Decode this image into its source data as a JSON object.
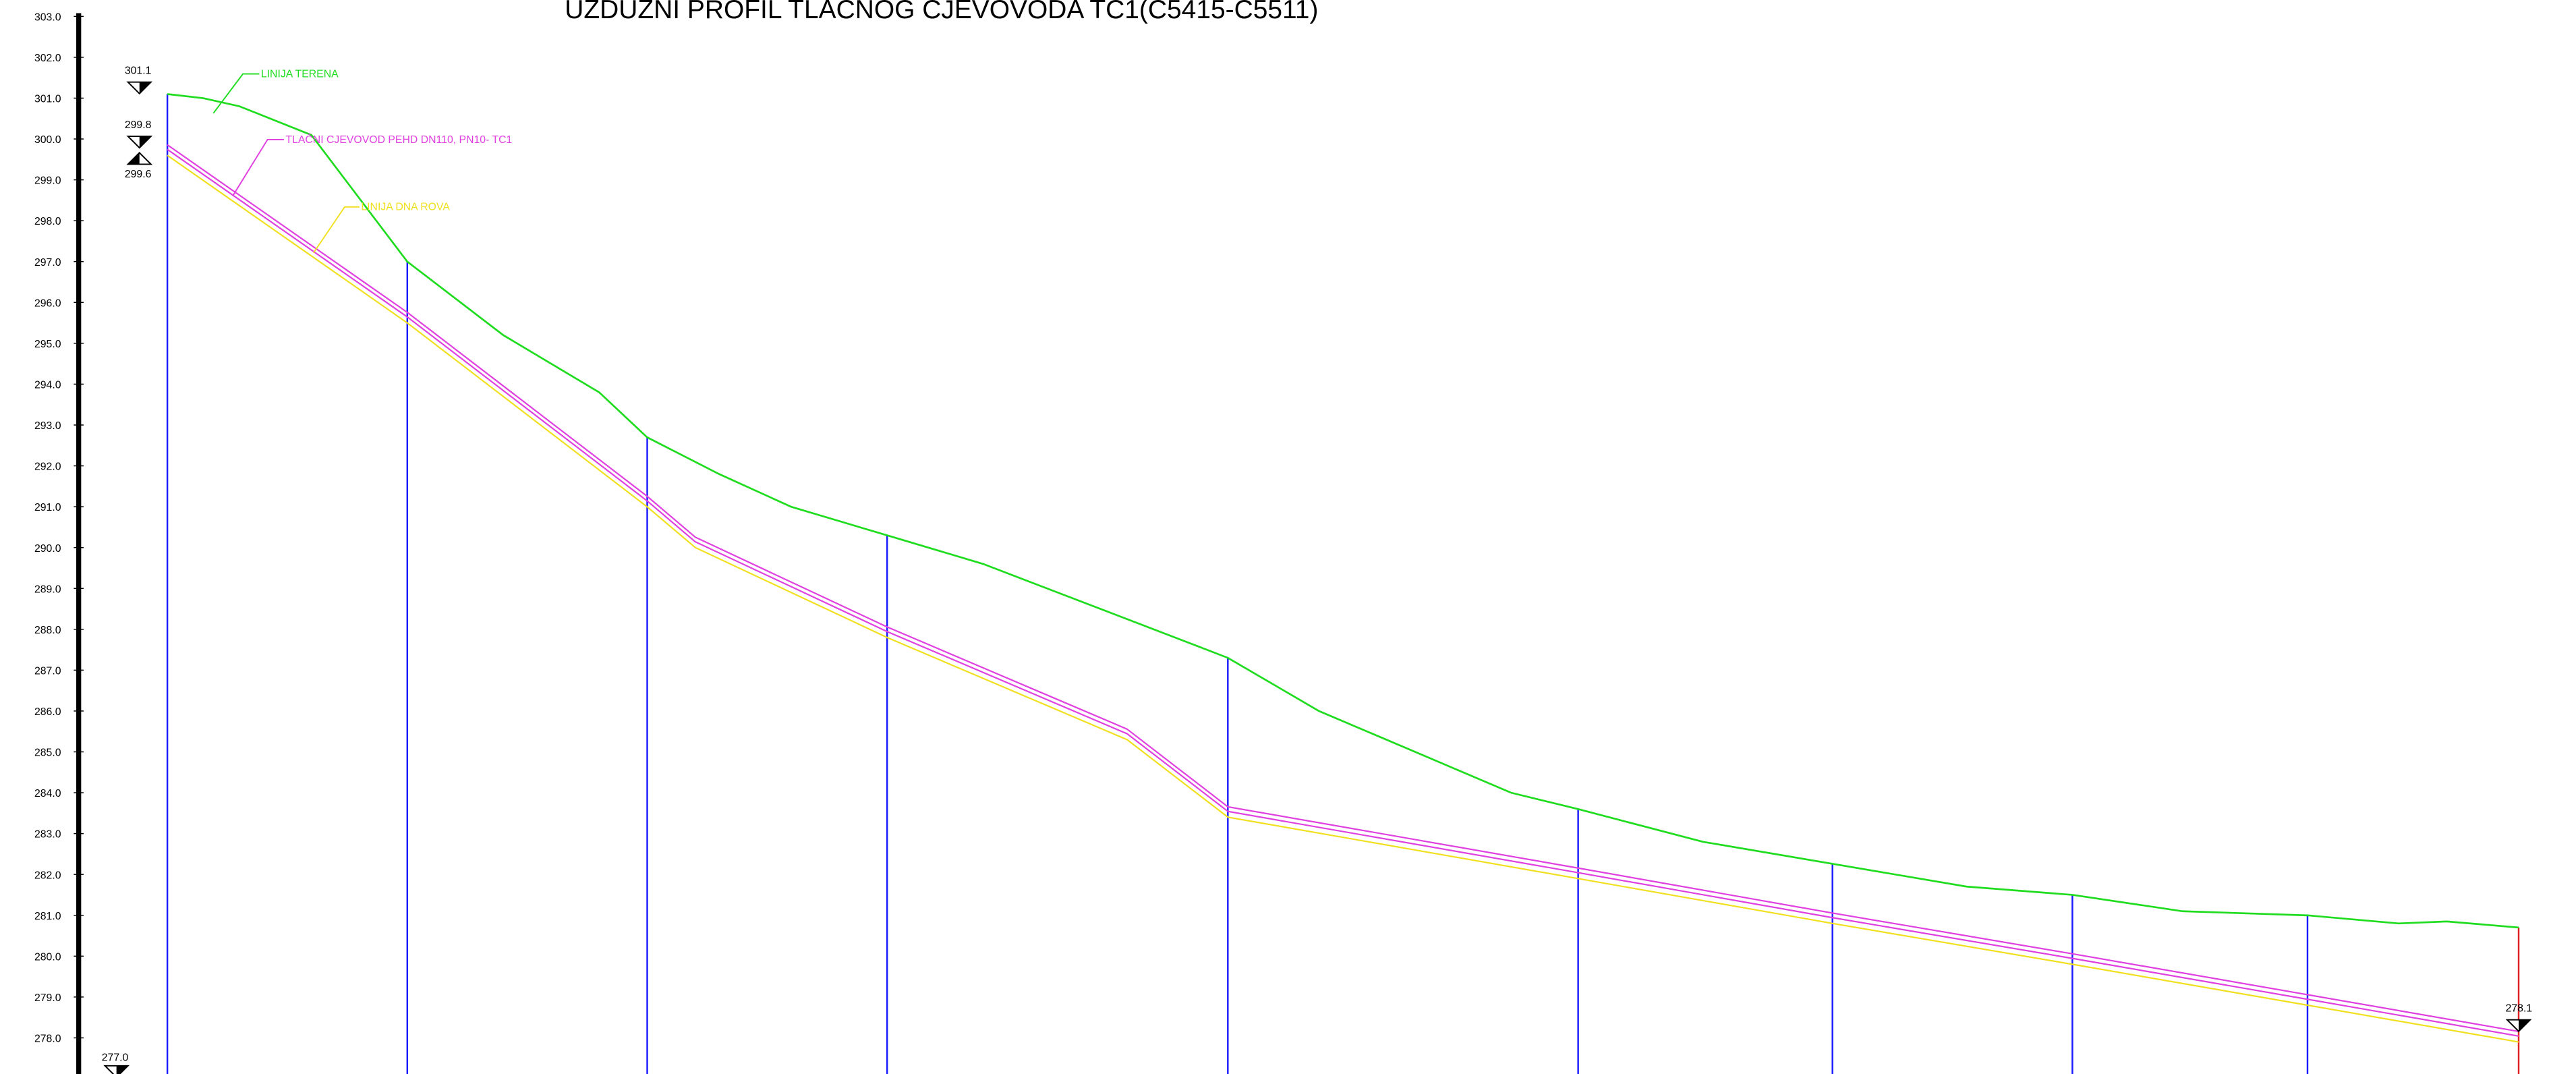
{
  "title": "UZDUŽNI PROFIL TLAČNOG CJEVOVODA TC1(C5415-C5511)",
  "colors": {
    "terrain": "#1fdc1f",
    "pipe": "#e040e0",
    "trench": "#f0e020",
    "station": "#1a1aff",
    "end_station": "#e02020",
    "axis": "#000000"
  },
  "labels": {
    "terrain": "LINIJA TERENA",
    "pipe": "TLAČNI CJEVOVOD PEHD DN110, PN10- TC1",
    "trench": "LINIJA DNA ROVA"
  },
  "elevations": {
    "start_terrain": "301.1",
    "start_pipe": "299.8",
    "start_trench": "299.6",
    "left_bottom": "277.0",
    "end_pipe": "278.1"
  },
  "chart_data": {
    "type": "line",
    "title": "UZDUŽNI PROFIL TLAČNOG CJEVOVODA TC1(C5415-C5511)",
    "ylim": [
      277,
      303
    ],
    "y_ticks": [
      "278.0",
      "279.0",
      "280.0",
      "281.0",
      "282.0",
      "283.0",
      "284.0",
      "285.0",
      "286.0",
      "287.0",
      "288.0",
      "289.0",
      "290.0",
      "291.0",
      "292.0",
      "293.0",
      "294.0",
      "295.0",
      "296.0",
      "297.0",
      "298.0",
      "299.0",
      "300.0",
      "301.0",
      "302.0",
      "303.0"
    ],
    "station_ticks": [
      0,
      1,
      2,
      3,
      4,
      5,
      6,
      7,
      8,
      9
    ],
    "series": [
      {
        "name": "LINIJA TERENA",
        "points": [
          [
            0,
            301.1
          ],
          [
            0.15,
            301.0
          ],
          [
            0.3,
            300.8
          ],
          [
            0.6,
            300.1
          ],
          [
            1.0,
            297.0
          ],
          [
            1.4,
            295.2
          ],
          [
            1.8,
            293.8
          ],
          [
            2.0,
            292.7
          ],
          [
            2.3,
            291.8
          ],
          [
            2.6,
            291.0
          ],
          [
            3.0,
            290.3
          ],
          [
            3.4,
            289.6
          ],
          [
            3.8,
            288.7
          ],
          [
            4.2,
            287.8
          ],
          [
            4.42,
            287.3
          ],
          [
            4.8,
            286.0
          ],
          [
            5.2,
            285.0
          ],
          [
            5.6,
            284.0
          ],
          [
            5.88,
            283.6
          ],
          [
            6.4,
            282.8
          ],
          [
            7.0,
            282.2
          ],
          [
            7.5,
            281.7
          ],
          [
            7.94,
            281.5
          ],
          [
            8.4,
            281.1
          ],
          [
            8.92,
            281.0
          ],
          [
            9.3,
            280.8
          ],
          [
            9.5,
            280.85
          ],
          [
            9.8,
            280.7
          ]
        ]
      },
      {
        "name": "TLAČNI CJEVOVOD PEHD DN110, PN10- TC1",
        "points": [
          [
            0,
            299.8
          ],
          [
            1.0,
            295.7
          ],
          [
            2.0,
            291.2
          ],
          [
            2.2,
            290.2
          ],
          [
            3.0,
            288.0
          ],
          [
            4.0,
            285.5
          ],
          [
            4.42,
            283.6
          ],
          [
            5.88,
            282.1
          ],
          [
            6.94,
            281.0
          ],
          [
            7.94,
            280.0
          ],
          [
            8.92,
            279.0
          ],
          [
            9.8,
            278.1
          ]
        ]
      },
      {
        "name": "LINIJA DNA ROVA",
        "points": [
          [
            0,
            299.6
          ],
          [
            1.0,
            295.5
          ],
          [
            2.0,
            291.0
          ],
          [
            2.2,
            290.0
          ],
          [
            3.0,
            287.8
          ],
          [
            4.0,
            285.3
          ],
          [
            4.42,
            283.4
          ],
          [
            5.88,
            281.9
          ],
          [
            6.94,
            280.8
          ],
          [
            7.94,
            279.8
          ],
          [
            8.92,
            278.8
          ],
          [
            9.8,
            277.9
          ]
        ]
      }
    ],
    "stations": [
      0,
      1.0,
      2.0,
      3.0,
      4.42,
      5.88,
      6.94,
      7.94,
      8.92,
      9.8
    ]
  }
}
